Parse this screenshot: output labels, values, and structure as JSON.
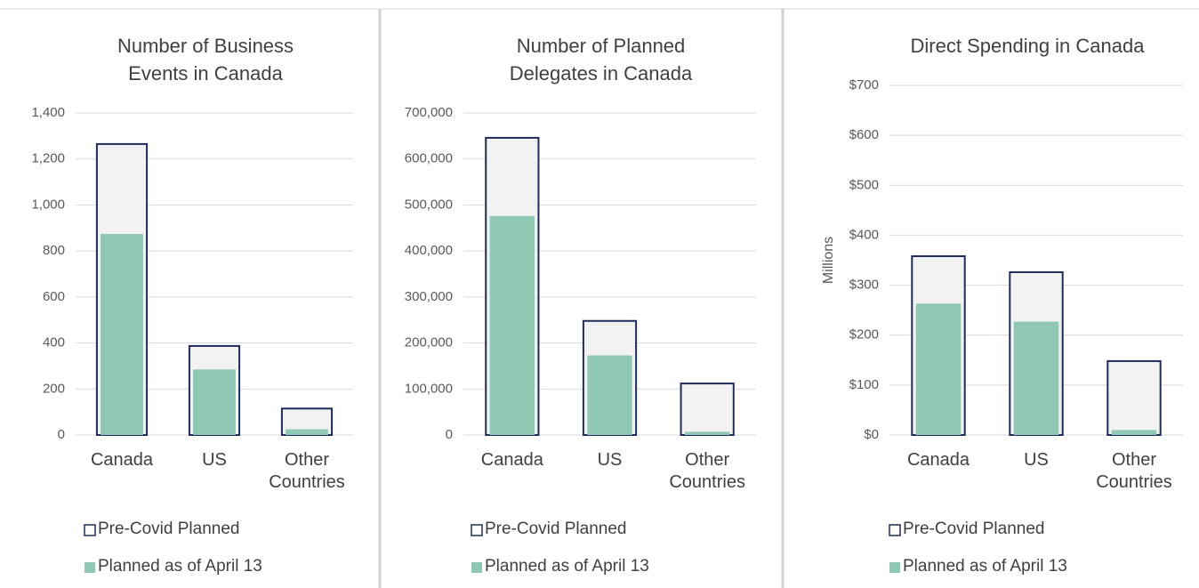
{
  "chart_data": [
    {
      "type": "bar",
      "title": "Number of Business Events in Canada",
      "categories": [
        "Canada",
        "US",
        "Other Countries"
      ],
      "series": [
        {
          "name": "Pre-Covid Planned",
          "color": "#f2f2f2",
          "edge_color": "#1f2d5c",
          "values": [
            1265,
            387,
            115
          ]
        },
        {
          "name": "Planned as of April 13",
          "color": "#8fc9b4",
          "values": [
            874,
            285,
            25
          ]
        }
      ],
      "ylim": [
        0,
        1400
      ],
      "yticks": [
        0,
        200,
        400,
        600,
        800,
        {
          "value": 1000,
          "label": "1,000"
        },
        {
          "value": 1200,
          "label": "1,200"
        },
        {
          "value": 1400,
          "label": "1,400"
        }
      ],
      "grid": true
    },
    {
      "type": "bar",
      "title": "Number of Planned Delegates in Canada",
      "categories": [
        "Canada",
        "US",
        "Other Countries"
      ],
      "series": [
        {
          "name": "Pre-Covid Planned",
          "color": "#f2f2f2",
          "edge_color": "#1f2d5c",
          "values": [
            646000,
            248000,
            112000
          ]
        },
        {
          "name": "Planned as of April 13",
          "color": "#8fc9b4",
          "values": [
            476000,
            173000,
            7000
          ]
        }
      ],
      "ylim": [
        0,
        700000
      ],
      "yticks": [
        0,
        {
          "value": 100000,
          "label": "100,000"
        },
        {
          "value": 200000,
          "label": "200,000"
        },
        {
          "value": 300000,
          "label": "300,000"
        },
        {
          "value": 400000,
          "label": "400,000"
        },
        {
          "value": 500000,
          "label": "500,000"
        },
        {
          "value": 600000,
          "label": "600,000"
        },
        {
          "value": 700000,
          "label": "700,000"
        }
      ],
      "grid": true
    },
    {
      "type": "bar",
      "title": "Direct Spending in Canada",
      "y_label": "Millions",
      "categories": [
        "Canada",
        "US",
        "Other Countries"
      ],
      "series": [
        {
          "name": "Pre-Covid Planned",
          "color": "#f2f2f2",
          "edge_color": "#1f2d5c",
          "values": [
            358,
            326,
            148
          ]
        },
        {
          "name": "Planned as of April 13",
          "color": "#8fc9b4",
          "values": [
            263,
            227,
            10
          ]
        }
      ],
      "ylim": [
        0,
        700
      ],
      "yticks": [
        {
          "value": 0,
          "label": "$0"
        },
        {
          "value": 100,
          "label": "$100"
        },
        {
          "value": 200,
          "label": "$200"
        },
        {
          "value": 300,
          "label": "$300"
        },
        {
          "value": 400,
          "label": "$400"
        },
        {
          "value": 500,
          "label": "$500"
        },
        {
          "value": 600,
          "label": "$600"
        },
        {
          "value": 700,
          "label": "$700"
        }
      ],
      "grid": true
    }
  ]
}
